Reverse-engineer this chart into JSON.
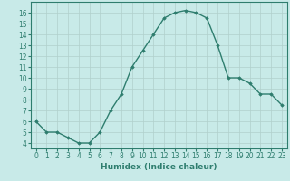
{
  "x": [
    0,
    1,
    2,
    3,
    4,
    5,
    6,
    7,
    8,
    9,
    10,
    11,
    12,
    13,
    14,
    15,
    16,
    17,
    18,
    19,
    20,
    21,
    22,
    23
  ],
  "y": [
    6,
    5,
    5,
    4.5,
    4,
    4,
    5,
    7,
    8.5,
    11,
    12.5,
    14,
    15.5,
    16,
    16.2,
    16,
    15.5,
    13,
    10,
    10,
    9.5,
    8.5,
    8.5,
    7.5
  ],
  "line_color": "#2e7d6e",
  "marker": "D",
  "marker_size": 1.8,
  "line_width": 1.0,
  "xlabel": "Humidex (Indice chaleur)",
  "background_color": "#c8eae8",
  "grid_color": "#b0d0cc",
  "xlim": [
    -0.5,
    23.5
  ],
  "ylim": [
    3.5,
    17
  ],
  "yticks": [
    4,
    5,
    6,
    7,
    8,
    9,
    10,
    11,
    12,
    13,
    14,
    15,
    16
  ],
  "xticks": [
    0,
    1,
    2,
    3,
    4,
    5,
    6,
    7,
    8,
    9,
    10,
    11,
    12,
    13,
    14,
    15,
    16,
    17,
    18,
    19,
    20,
    21,
    22,
    23
  ],
  "tick_fontsize": 5.5,
  "xlabel_fontsize": 6.5
}
